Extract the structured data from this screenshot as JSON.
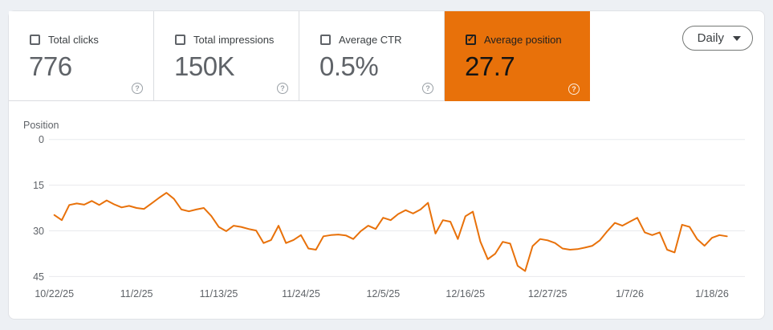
{
  "tiles": [
    {
      "label": "Total clicks",
      "value": "776",
      "checked": false
    },
    {
      "label": "Total impressions",
      "value": "150K",
      "checked": false
    },
    {
      "label": "Average CTR",
      "value": "0.5%",
      "checked": false
    },
    {
      "label": "Average position",
      "value": "27.7",
      "checked": true
    }
  ],
  "controls": {
    "granularity": "Daily"
  },
  "icons": {
    "check": "✓",
    "help": "?"
  },
  "colors": {
    "accent_orange": "#e8710a",
    "page_bg": "#edf0f4",
    "card_bg": "#ffffff",
    "grid": "#e8eaed",
    "axis_text": "#5f6368",
    "tile_border": "#dadce0"
  },
  "chart_data": {
    "type": "line",
    "title": "Average position over time (daily)",
    "ylabel": "Position",
    "y_ticks": [
      0,
      15,
      30,
      45
    ],
    "ylim": [
      0,
      45
    ],
    "y_axis_inverted_meaning": "0 at top, larger position values lower on screen",
    "grid": "horizontal",
    "legend": "none",
    "x_unit": "days, daily from 10/22/25 to 1/20/26",
    "x_tick_labels": [
      "10/22/25",
      "11/2/25",
      "11/13/25",
      "11/24/25",
      "12/5/25",
      "12/16/25",
      "12/27/25",
      "1/7/26",
      "1/18/26"
    ],
    "x_tick_day_indices": [
      0,
      11,
      22,
      33,
      44,
      55,
      66,
      77,
      88
    ],
    "series": [
      {
        "name": "Average position",
        "color": "#e8710a",
        "values": [
          24.8,
          26.5,
          21.5,
          21.0,
          21.4,
          20.2,
          21.5,
          20.0,
          21.3,
          22.3,
          21.8,
          22.5,
          22.8,
          21.0,
          19.2,
          17.5,
          19.5,
          23.0,
          23.6,
          23.0,
          22.5,
          25.1,
          28.7,
          30.1,
          28.3,
          28.7,
          29.4,
          29.9,
          34.0,
          33.0,
          28.3,
          34.0,
          33.0,
          31.4,
          35.8,
          36.2,
          31.8,
          31.4,
          31.2,
          31.5,
          32.7,
          30.1,
          28.3,
          29.4,
          25.7,
          26.5,
          24.5,
          23.2,
          24.3,
          23.0,
          20.8,
          30.9,
          26.5,
          27.0,
          32.7,
          25.2,
          23.7,
          33.5,
          39.3,
          37.5,
          33.6,
          34.2,
          41.5,
          43.2,
          35.0,
          32.7,
          33.1,
          34.0,
          35.8,
          36.2,
          36.0,
          35.5,
          34.9,
          33.1,
          30.1,
          27.4,
          28.3,
          27.0,
          25.7,
          30.5,
          31.4,
          30.5,
          36.2,
          37.1,
          28.0,
          28.7,
          32.7,
          34.9,
          32.3,
          31.4,
          31.8
        ]
      }
    ]
  }
}
